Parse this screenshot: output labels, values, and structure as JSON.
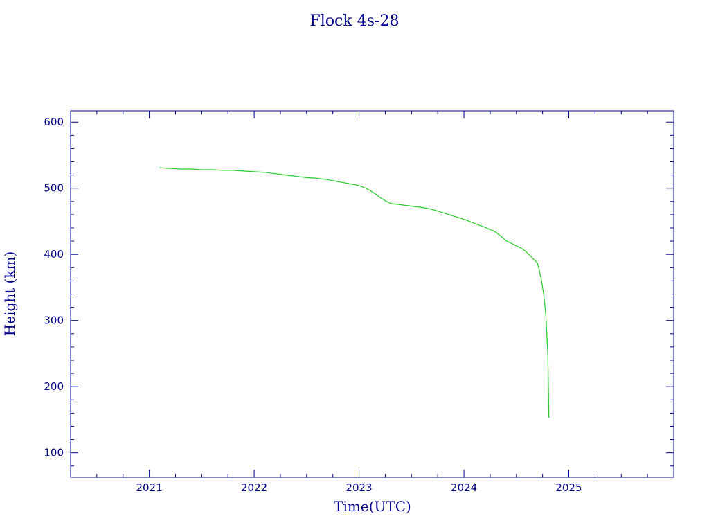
{
  "chart_data": {
    "type": "line",
    "title": "Flock 4s-28",
    "xlabel": "Time(UTC)",
    "ylabel": "Height (km)",
    "xlim": [
      2020.25,
      2026.0
    ],
    "ylim": [
      63,
      617
    ],
    "xticks": [
      2021,
      2022,
      2023,
      2024,
      2025
    ],
    "yticks": [
      100,
      200,
      300,
      400,
      500,
      600
    ],
    "grid": false,
    "colors": {
      "axis": "#00008b",
      "line": "#22cc22"
    },
    "series": [
      {
        "x": [
          2021.1,
          2021.2,
          2021.3,
          2021.4,
          2021.5,
          2021.6,
          2021.7,
          2021.8,
          2021.9,
          2022.0,
          2022.1,
          2022.2,
          2022.3,
          2022.4,
          2022.5,
          2022.6,
          2022.7,
          2022.8,
          2022.9,
          2023.0,
          2023.05,
          2023.1,
          2023.15,
          2023.2,
          2023.25,
          2023.3,
          2023.35,
          2023.4,
          2023.5,
          2023.6,
          2023.7,
          2023.8,
          2023.9,
          2024.0,
          2024.1,
          2024.2,
          2024.3,
          2024.35,
          2024.4,
          2024.45,
          2024.5,
          2024.55,
          2024.6,
          2024.65,
          2024.7,
          2024.72,
          2024.74,
          2024.76,
          2024.78,
          2024.79,
          2024.8,
          2024.805,
          2024.81
        ],
        "y": [
          531,
          530,
          529,
          529,
          528,
          528,
          527,
          527,
          526,
          525,
          524,
          522,
          520,
          518,
          516,
          515,
          513,
          510,
          507,
          504,
          501,
          497,
          492,
          486,
          481,
          477,
          476,
          475,
          473,
          471,
          468,
          463,
          458,
          453,
          447,
          441,
          434,
          428,
          421,
          417,
          413,
          409,
          403,
          395,
          387,
          375,
          360,
          340,
          310,
          280,
          250,
          200,
          153
        ]
      }
    ]
  }
}
